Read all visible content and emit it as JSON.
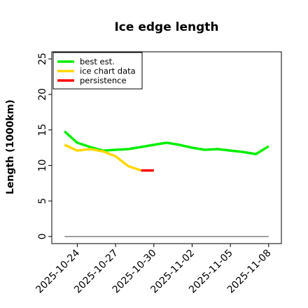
{
  "chart_data": {
    "type": "line",
    "title": "Ice edge length",
    "xlabel": "",
    "ylabel": "Length (1000km)",
    "ylim": [
      -1,
      26
    ],
    "xlim": [
      "2025-10-22",
      "2025-11-09"
    ],
    "yticks": [
      0,
      5,
      10,
      15,
      20,
      25
    ],
    "xticks": [
      "2025-10-24",
      "2025-10-27",
      "2025-10-30",
      "2025-11-02",
      "2025-11-05",
      "2025-11-08"
    ],
    "grid": false,
    "legend_position": "top-left",
    "baseline": {
      "y": 0,
      "x_start": "2025-10-23",
      "x_end": "2025-11-08",
      "color": "#808080"
    },
    "series": [
      {
        "name": "best est.",
        "color": "#00ee00",
        "points": [
          {
            "x": "2025-10-23",
            "y": 14.8
          },
          {
            "x": "2025-10-24",
            "y": 13.2
          },
          {
            "x": "2025-10-25",
            "y": 12.6
          },
          {
            "x": "2025-10-26",
            "y": 12.1
          },
          {
            "x": "2025-10-27",
            "y": 12.2
          },
          {
            "x": "2025-10-28",
            "y": 12.3
          },
          {
            "x": "2025-10-29",
            "y": 12.6
          },
          {
            "x": "2025-10-30",
            "y": 12.9
          },
          {
            "x": "2025-10-31",
            "y": 13.2
          },
          {
            "x": "2025-11-01",
            "y": 12.9
          },
          {
            "x": "2025-11-02",
            "y": 12.5
          },
          {
            "x": "2025-11-03",
            "y": 12.2
          },
          {
            "x": "2025-11-04",
            "y": 12.3
          },
          {
            "x": "2025-11-05",
            "y": 12.1
          },
          {
            "x": "2025-11-06",
            "y": 11.9
          },
          {
            "x": "2025-11-07",
            "y": 11.6
          },
          {
            "x": "2025-11-08",
            "y": 12.7
          }
        ]
      },
      {
        "name": "ice chart data",
        "color": "#ffd700",
        "points": [
          {
            "x": "2025-10-23",
            "y": 12.9
          },
          {
            "x": "2025-10-24",
            "y": 12.1
          },
          {
            "x": "2025-10-25",
            "y": 12.3
          },
          {
            "x": "2025-10-26",
            "y": 12.0
          },
          {
            "x": "2025-10-27",
            "y": 11.3
          },
          {
            "x": "2025-10-28",
            "y": 9.9
          },
          {
            "x": "2025-10-29",
            "y": 9.3
          }
        ]
      },
      {
        "name": "persistence",
        "color": "#ff0000",
        "points": [
          {
            "x": "2025-10-29",
            "y": 9.3
          },
          {
            "x": "2025-10-30",
            "y": 9.3
          }
        ]
      }
    ]
  }
}
